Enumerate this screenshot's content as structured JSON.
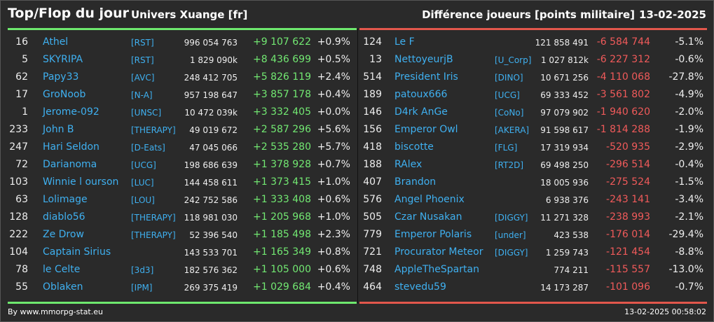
{
  "header": {
    "title": "Top/Flop du jour",
    "universe": "Univers Xuange [fr]",
    "metric": "Différence joueurs [points militaire]",
    "date": "13-02-2025"
  },
  "colors": {
    "positive": "#72e872",
    "negative": "#f05a5a",
    "link": "#3fb0f0",
    "top_bar": "#6ee86e",
    "flop_bar": "#e2574c"
  },
  "top": [
    {
      "rank": "16",
      "name": "Athel",
      "alliance": "[RST]",
      "points": "996 054 763",
      "diff": "+9 107 622",
      "pct": "+0.9%"
    },
    {
      "rank": "5",
      "name": "SKYRIPA",
      "alliance": "[RST]",
      "points": "1 829 090k",
      "diff": "+8 436 699",
      "pct": "+0.5%"
    },
    {
      "rank": "62",
      "name": "Papy33",
      "alliance": "[AVC]",
      "points": "248 412 705",
      "diff": "+5 826 119",
      "pct": "+2.4%"
    },
    {
      "rank": "17",
      "name": "GroNoob",
      "alliance": "[N-A]",
      "points": "957 198 647",
      "diff": "+3 857 178",
      "pct": "+0.4%"
    },
    {
      "rank": "1",
      "name": "Jerome-092",
      "alliance": "[UNSC]",
      "points": "10 472 039k",
      "diff": "+3 332 405",
      "pct": "+0.0%"
    },
    {
      "rank": "233",
      "name": "John B",
      "alliance": "[THERAPY]",
      "points": "49 019 672",
      "diff": "+2 587 296",
      "pct": "+5.6%"
    },
    {
      "rank": "247",
      "name": "Hari Seldon",
      "alliance": "[D-Eats]",
      "points": "47 045 066",
      "diff": "+2 535 280",
      "pct": "+5.7%"
    },
    {
      "rank": "72",
      "name": "Darianoma",
      "alliance": "[UCG]",
      "points": "198 686 639",
      "diff": "+1 378 928",
      "pct": "+0.7%"
    },
    {
      "rank": "103",
      "name": "Winnie l ourson",
      "alliance": "[LUC]",
      "points": "144 458 611",
      "diff": "+1 373 415",
      "pct": "+1.0%"
    },
    {
      "rank": "63",
      "name": "Lolimage",
      "alliance": "[LOU]",
      "points": "242 752 586",
      "diff": "+1 333 408",
      "pct": "+0.6%"
    },
    {
      "rank": "128",
      "name": "diablo56",
      "alliance": "[THERAPY]",
      "points": "118 981 030",
      "diff": "+1 205 968",
      "pct": "+1.0%"
    },
    {
      "rank": "222",
      "name": "Ze Drow",
      "alliance": "[THERAPY]",
      "points": "52 396 540",
      "diff": "+1 185 498",
      "pct": "+2.3%"
    },
    {
      "rank": "104",
      "name": "Captain Sirius",
      "alliance": "",
      "points": "143 533 701",
      "diff": "+1 165 349",
      "pct": "+0.8%"
    },
    {
      "rank": "78",
      "name": "le Celte",
      "alliance": "[3d3]",
      "points": "182 576 362",
      "diff": "+1 105 000",
      "pct": "+0.6%"
    },
    {
      "rank": "55",
      "name": "Oblaken",
      "alliance": "[IPM]",
      "points": "269 375 419",
      "diff": "+1 029 684",
      "pct": "+0.4%"
    }
  ],
  "flop": [
    {
      "rank": "124",
      "name": "Le F",
      "alliance": "",
      "points": "121 858 491",
      "diff": "-6 584 744",
      "pct": "-5.1%"
    },
    {
      "rank": "13",
      "name": "NettoyeurjB",
      "alliance": "[U_Corp]",
      "points": "1 027 812k",
      "diff": "-6 227 312",
      "pct": "-0.6%"
    },
    {
      "rank": "514",
      "name": "President Iris",
      "alliance": "[DINO]",
      "points": "10 671 256",
      "diff": "-4 110 068",
      "pct": "-27.8%"
    },
    {
      "rank": "189",
      "name": "patoux666",
      "alliance": "[UCG]",
      "points": "69 333 452",
      "diff": "-3 561 802",
      "pct": "-4.9%"
    },
    {
      "rank": "146",
      "name": "D4rk AnGe",
      "alliance": "[CoNo]",
      "points": "97 079 902",
      "diff": "-1 940 620",
      "pct": "-2.0%"
    },
    {
      "rank": "156",
      "name": "Emperor Owl",
      "alliance": "[AKERA]",
      "points": "91 598 617",
      "diff": "-1 814 288",
      "pct": "-1.9%"
    },
    {
      "rank": "418",
      "name": "biscotte",
      "alliance": "[FLG]",
      "points": "17 319 934",
      "diff": "-520 935",
      "pct": "-2.9%"
    },
    {
      "rank": "188",
      "name": "RAlex",
      "alliance": "[RT2D]",
      "points": "69 498 250",
      "diff": "-296 514",
      "pct": "-0.4%"
    },
    {
      "rank": "407",
      "name": "Brandon",
      "alliance": "",
      "points": "18 005 936",
      "diff": "-275 524",
      "pct": "-1.5%"
    },
    {
      "rank": "576",
      "name": "Angel Phoenix",
      "alliance": "",
      "points": "6 938 376",
      "diff": "-243 141",
      "pct": "-3.4%"
    },
    {
      "rank": "505",
      "name": "Czar Nusakan",
      "alliance": "[DIGGY]",
      "points": "11 271 328",
      "diff": "-238 993",
      "pct": "-2.1%"
    },
    {
      "rank": "779",
      "name": "Emperor Polaris",
      "alliance": "[under]",
      "points": "423 538",
      "diff": "-176 014",
      "pct": "-29.4%"
    },
    {
      "rank": "721",
      "name": "Procurator Meteor",
      "alliance": "[DIGGY]",
      "points": "1 259 743",
      "diff": "-121 454",
      "pct": "-8.8%"
    },
    {
      "rank": "748",
      "name": "AppleTheSpartan",
      "alliance": "",
      "points": "774 211",
      "diff": "-115 557",
      "pct": "-13.0%"
    },
    {
      "rank": "464",
      "name": "stevedu59",
      "alliance": "",
      "points": "14 173 287",
      "diff": "-101 096",
      "pct": "-0.7%"
    }
  ],
  "footer": {
    "source": "By www.mmorpg-stat.eu",
    "timestamp": "13-02-2025 00:58:02"
  }
}
